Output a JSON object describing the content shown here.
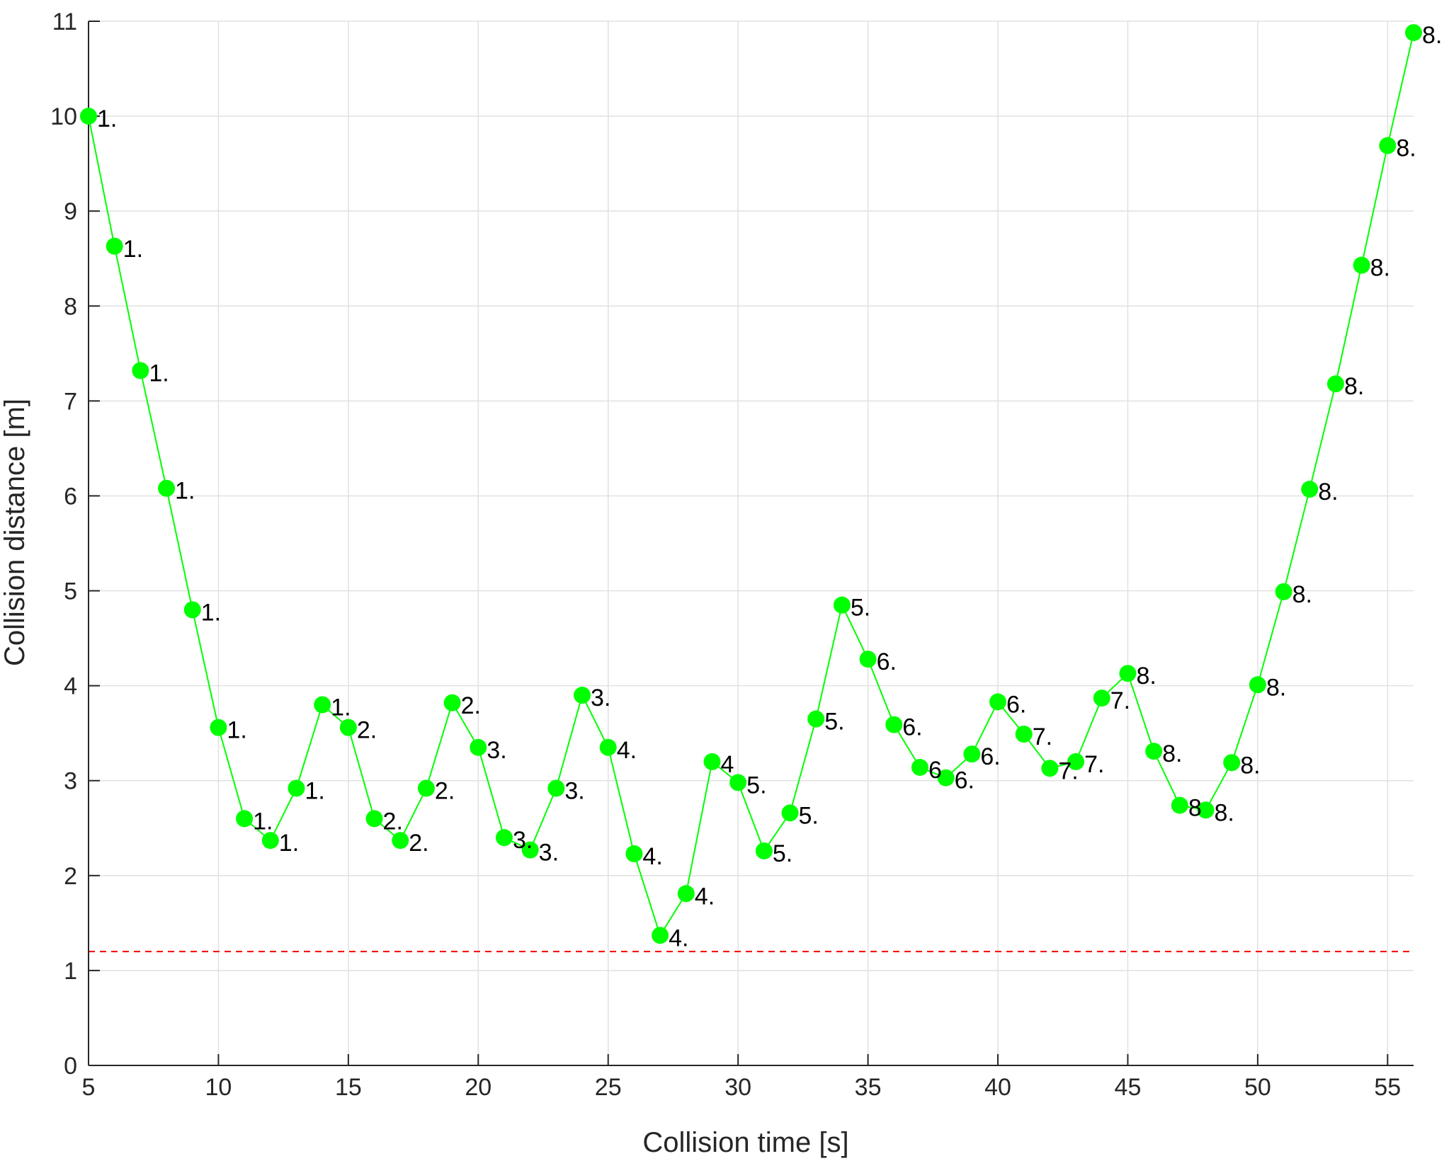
{
  "chart_data": {
    "type": "line",
    "xlabel": "Collision time [s]",
    "ylabel": "Collision distance [m]",
    "xlim": [
      5,
      56
    ],
    "ylim": [
      0,
      11
    ],
    "xticks": [
      "5",
      "10",
      "15",
      "20",
      "25",
      "30",
      "35",
      "40",
      "45",
      "50",
      "55"
    ],
    "yticks": [
      "0",
      "1",
      "2",
      "3",
      "4",
      "5",
      "6",
      "7",
      "8",
      "9",
      "10",
      "11"
    ],
    "grid": true,
    "colors": {
      "series": "#00ff00",
      "threshold": "#ff0000",
      "grid": "#e1e1e1",
      "axis": "#262626"
    },
    "threshold": {
      "y": 1.2,
      "style": "dashed"
    },
    "series": [
      {
        "x": [
          5,
          6,
          7,
          8,
          9,
          10,
          11,
          12,
          13,
          14,
          15,
          16,
          17,
          18,
          19,
          20,
          21,
          22,
          23,
          24,
          25,
          26,
          27,
          28,
          29,
          30,
          31,
          32,
          33,
          34,
          35,
          36,
          37,
          38,
          39,
          40,
          41,
          42,
          43,
          44,
          45,
          46,
          47,
          48,
          49,
          50,
          51,
          52,
          53,
          54,
          55,
          56
        ],
        "y": [
          10.0,
          8.63,
          7.32,
          6.08,
          4.8,
          3.56,
          2.6,
          2.37,
          2.92,
          3.8,
          3.56,
          2.6,
          2.37,
          2.92,
          3.82,
          3.35,
          2.4,
          2.27,
          2.92,
          3.9,
          3.35,
          2.23,
          1.37,
          1.81,
          3.2,
          2.98,
          2.26,
          2.66,
          3.65,
          4.85,
          4.28,
          3.59,
          3.14,
          3.03,
          3.28,
          3.83,
          3.49,
          3.13,
          3.2,
          3.87,
          4.13,
          3.31,
          2.74,
          2.69,
          3.19,
          4.01,
          4.99,
          6.07,
          7.18,
          8.43,
          9.69,
          10.88
        ],
        "labels": [
          "1.",
          "1.",
          "1.",
          "1.",
          "1.",
          "1.",
          "1.",
          "1.",
          "1.",
          "1.",
          "2.",
          "2.",
          "2.",
          "2.",
          "2.",
          "3.",
          "3.",
          "3.",
          "3.",
          "3.",
          "4.",
          "4.",
          "4.",
          "4.",
          "4",
          "5.",
          "5.",
          "5.",
          "5.",
          "5.",
          "6.",
          "6.",
          "6",
          "6.",
          "6.",
          "6.",
          "7.",
          "7.",
          "7.",
          "7.",
          "8.",
          "8.",
          "8",
          "8.",
          "8.",
          "8.",
          "8.",
          "8.",
          "8.",
          "8.",
          "8.",
          "8."
        ]
      }
    ]
  }
}
